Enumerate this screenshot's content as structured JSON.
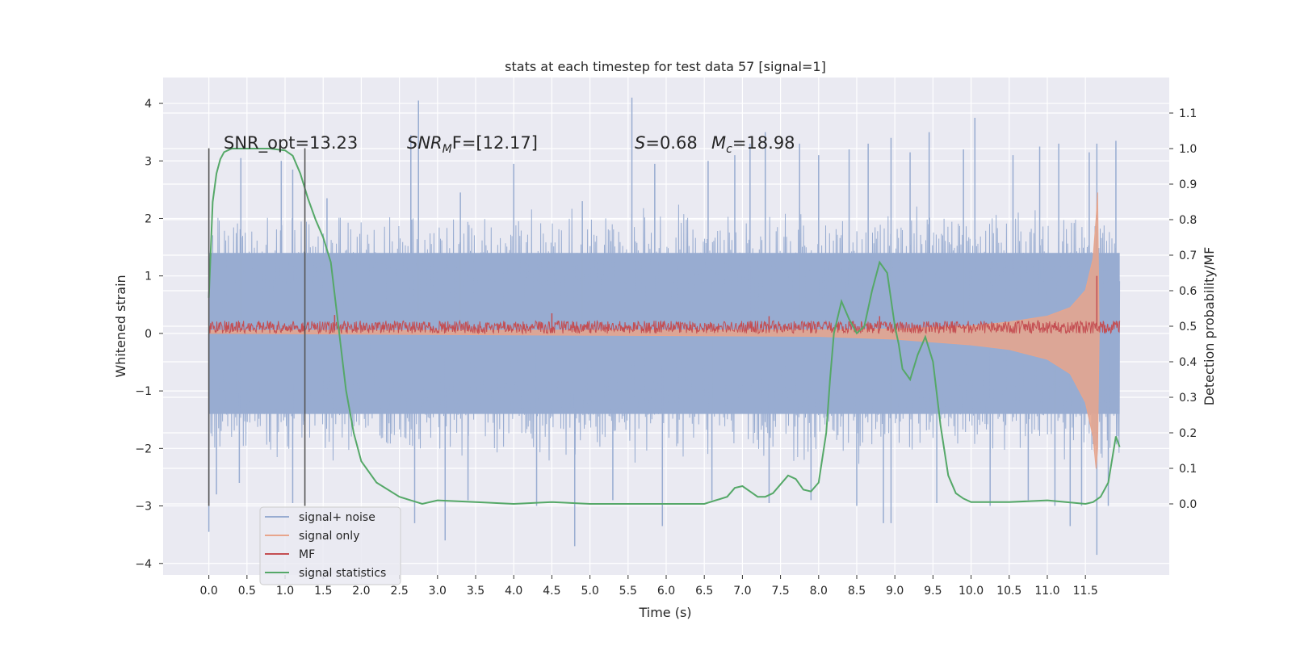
{
  "chart_data": {
    "type": "line",
    "title": "stats at each timestep for test data 57 [signal=1]",
    "xlabel": "Time (s)",
    "ylabel": "Whitened strain",
    "ylabel_right": "Detection probability/MF",
    "xlim": [
      -0.6,
      12.6
    ],
    "ylim": [
      -4.2,
      4.45
    ],
    "ylim_right": [
      -0.2,
      1.2
    ],
    "x_ticks": [
      "0.0",
      "0.5",
      "1.0",
      "1.5",
      "2.0",
      "2.5",
      "3.0",
      "3.5",
      "4.0",
      "4.5",
      "5.0",
      "5.5",
      "6.0",
      "6.5",
      "7.0",
      "7.5",
      "8.0",
      "8.5",
      "9.0",
      "9.5",
      "10.0",
      "10.5",
      "11.0",
      "11.5"
    ],
    "y_ticks": [
      "4",
      "3",
      "2",
      "1",
      "0",
      "−1",
      "−2",
      "−3",
      "−4"
    ],
    "y_right_ticks": [
      "1.1",
      "1.0",
      "0.9",
      "0.8",
      "0.7",
      "0.6",
      "0.5",
      "0.4",
      "0.3",
      "0.2",
      "0.1",
      "0.0"
    ],
    "grid": true,
    "legend_position": "lower-left",
    "annotations": {
      "snr_opt": "SNR_opt=13.23",
      "snr_mf_label": "SNR",
      "snr_mf_sub": "M",
      "snr_mf_suffix": "F=[12.17]",
      "s_label": "S",
      "s_value": "=0.68",
      "mc_label": "M",
      "mc_sub": "c",
      "mc_value": "=18.98"
    },
    "vlines": [
      0.0,
      1.26
    ],
    "series": [
      {
        "name": "signal+ noise",
        "color": "#98acd1",
        "style": "noise",
        "x_range": [
          0.0,
          11.95
        ],
        "envelope": [
          -1.4,
          1.4
        ],
        "spikes_upper": [
          [
            0.42,
            3.05
          ],
          [
            0.95,
            3.0
          ],
          [
            1.1,
            2.85
          ],
          [
            1.55,
            2.35
          ],
          [
            2.65,
            3.45
          ],
          [
            2.75,
            4.05
          ],
          [
            3.3,
            2.45
          ],
          [
            4.0,
            2.95
          ],
          [
            4.9,
            2.3
          ],
          [
            5.55,
            4.1
          ],
          [
            5.85,
            2.95
          ],
          [
            6.55,
            3.0
          ],
          [
            6.9,
            3.1
          ],
          [
            7.1,
            3.3
          ],
          [
            7.3,
            3.5
          ],
          [
            7.75,
            3.3
          ],
          [
            8.0,
            3.1
          ],
          [
            8.4,
            3.2
          ],
          [
            8.65,
            3.3
          ],
          [
            8.95,
            3.4
          ],
          [
            9.2,
            3.15
          ],
          [
            9.45,
            3.5
          ],
          [
            9.9,
            3.2
          ],
          [
            10.05,
            3.75
          ],
          [
            10.55,
            3.1
          ],
          [
            10.9,
            3.25
          ],
          [
            11.15,
            3.3
          ],
          [
            11.55,
            3.15
          ],
          [
            11.65,
            3.3
          ],
          [
            11.9,
            3.35
          ]
        ],
        "spikes_lower": [
          [
            0.0,
            -3.45
          ],
          [
            0.1,
            -2.8
          ],
          [
            0.4,
            -2.6
          ],
          [
            1.1,
            -2.95
          ],
          [
            2.7,
            -3.3
          ],
          [
            3.1,
            -3.6
          ],
          [
            3.4,
            -2.9
          ],
          [
            4.3,
            -3.0
          ],
          [
            4.8,
            -3.7
          ],
          [
            5.3,
            -2.9
          ],
          [
            5.95,
            -3.35
          ],
          [
            6.6,
            -2.9
          ],
          [
            7.35,
            -2.95
          ],
          [
            7.9,
            -2.9
          ],
          [
            8.5,
            -3.0
          ],
          [
            8.85,
            -3.3
          ],
          [
            8.95,
            -3.3
          ],
          [
            9.55,
            -2.95
          ],
          [
            10.25,
            -3.0
          ],
          [
            10.75,
            -2.9
          ],
          [
            11.1,
            -3.0
          ],
          [
            11.3,
            -3.35
          ],
          [
            11.45,
            -3.0
          ],
          [
            11.65,
            -3.85
          ],
          [
            11.8,
            -3.0
          ]
        ]
      },
      {
        "name": "signal only",
        "color": "#e8a58c",
        "style": "chirp",
        "x_range": [
          0.0,
          11.68
        ],
        "points": [
          [
            0,
            0.05
          ],
          [
            8,
            0.06
          ],
          [
            9,
            0.08
          ],
          [
            10,
            0.13
          ],
          [
            10.5,
            0.2
          ],
          [
            11.0,
            0.3
          ],
          [
            11.3,
            0.45
          ],
          [
            11.5,
            0.75
          ],
          [
            11.6,
            1.3
          ],
          [
            11.64,
            2.0
          ],
          [
            11.66,
            2.45
          ],
          [
            11.68,
            0.0
          ]
        ],
        "points_lower": [
          [
            0,
            0.0
          ],
          [
            8,
            -0.05
          ],
          [
            9,
            -0.1
          ],
          [
            10,
            -0.2
          ],
          [
            10.5,
            -0.28
          ],
          [
            11.0,
            -0.45
          ],
          [
            11.3,
            -0.7
          ],
          [
            11.5,
            -1.2
          ],
          [
            11.6,
            -1.8
          ],
          [
            11.64,
            -2.35
          ],
          [
            11.66,
            -2.0
          ],
          [
            11.68,
            0.0
          ]
        ]
      },
      {
        "name": "MF",
        "color": "#c44e52",
        "style": "band",
        "x_range": [
          0.0,
          11.95
        ],
        "band": [
          0.0,
          0.22
        ],
        "spikes": [
          [
            1.65,
            0.32
          ],
          [
            4.5,
            0.35
          ],
          [
            7.35,
            0.3
          ],
          [
            8.8,
            0.3
          ],
          [
            11.65,
            1.0
          ]
        ]
      },
      {
        "name": "signal statistics",
        "color": "#55a868",
        "axis": "right",
        "x": [
          0.0,
          0.05,
          0.1,
          0.15,
          0.2,
          0.3,
          0.5,
          0.8,
          1.0,
          1.1,
          1.2,
          1.3,
          1.4,
          1.5,
          1.6,
          1.7,
          1.8,
          1.9,
          2.0,
          2.2,
          2.5,
          2.8,
          3.0,
          3.5,
          4.0,
          4.5,
          5.0,
          5.5,
          6.0,
          6.5,
          6.8,
          6.9,
          7.0,
          7.1,
          7.2,
          7.3,
          7.4,
          7.5,
          7.6,
          7.7,
          7.8,
          7.9,
          8.0,
          8.1,
          8.15,
          8.2,
          8.3,
          8.4,
          8.5,
          8.6,
          8.7,
          8.8,
          8.9,
          9.0,
          9.05,
          9.1,
          9.2,
          9.3,
          9.4,
          9.5,
          9.6,
          9.7,
          9.8,
          9.9,
          10.0,
          10.5,
          11.0,
          11.5,
          11.6,
          11.7,
          11.8,
          11.9,
          11.95
        ],
        "y": [
          0.58,
          0.85,
          0.93,
          0.97,
          0.99,
          1.0,
          1.0,
          1.0,
          0.995,
          0.98,
          0.93,
          0.86,
          0.8,
          0.75,
          0.68,
          0.5,
          0.32,
          0.2,
          0.12,
          0.06,
          0.02,
          0.0,
          0.01,
          0.005,
          0.0,
          0.005,
          0.0,
          0.0,
          0.0,
          0.0,
          0.02,
          0.045,
          0.05,
          0.035,
          0.02,
          0.02,
          0.03,
          0.055,
          0.08,
          0.07,
          0.04,
          0.035,
          0.06,
          0.2,
          0.35,
          0.48,
          0.57,
          0.52,
          0.48,
          0.5,
          0.6,
          0.68,
          0.65,
          0.5,
          0.45,
          0.38,
          0.35,
          0.42,
          0.47,
          0.4,
          0.22,
          0.08,
          0.03,
          0.015,
          0.005,
          0.005,
          0.01,
          0.0,
          0.005,
          0.02,
          0.06,
          0.19,
          0.16
        ]
      }
    ]
  }
}
